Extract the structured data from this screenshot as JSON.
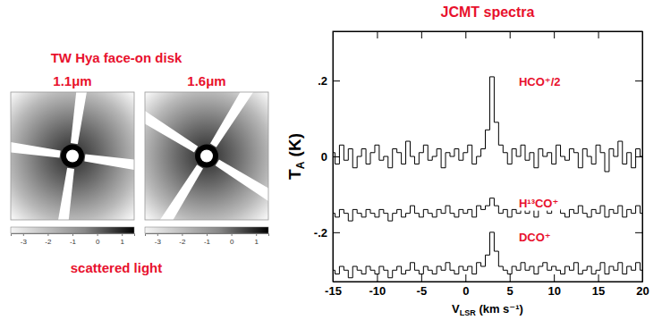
{
  "panel": {
    "title": "TW Hya face-on disk",
    "caption": "scattered light",
    "images": [
      {
        "label": "1.1μm",
        "colorbar": {
          "range": [
            -3.5,
            1.5
          ],
          "ticks": [
            -3,
            -2,
            -1,
            0,
            1
          ]
        }
      },
      {
        "label": "1.6μm",
        "colorbar": {
          "range": [
            -3.5,
            1.5
          ],
          "ticks": [
            -3,
            -2,
            -1,
            0,
            1
          ]
        }
      }
    ]
  },
  "chart_data": {
    "type": "line",
    "title": "JCMT spectra",
    "xlabel": "VLSR (km s⁻¹)",
    "ylabel": "TA (K)",
    "x": [
      -15,
      -14.5,
      -14,
      -13.5,
      -13,
      -12.5,
      -12,
      -11.5,
      -11,
      -10.5,
      -10,
      -9.5,
      -9,
      -8.5,
      -8,
      -7.5,
      -7,
      -6.5,
      -6,
      -5.5,
      -5,
      -4.5,
      -4,
      -3.5,
      -3,
      -2.5,
      -2,
      -1.5,
      -1,
      -0.5,
      0,
      0.5,
      1,
      1.5,
      2,
      2.5,
      3,
      3.5,
      4,
      4.5,
      5,
      5.5,
      6,
      6.5,
      7,
      7.5,
      8,
      8.5,
      9,
      9.5,
      10,
      10.5,
      11,
      11.5,
      12,
      12.5,
      13,
      13.5,
      14,
      14.5,
      15,
      15.5,
      16,
      16.5,
      17,
      17.5,
      18,
      18.5,
      19,
      19.5,
      20
    ],
    "series": [
      {
        "name": "HCO⁺/2",
        "color": "#000000",
        "line_style": "step",
        "values": [
          0.01,
          -0.02,
          0.03,
          -0.01,
          0.02,
          -0.03,
          0.0,
          0.02,
          -0.02,
          0.01,
          0.03,
          -0.01,
          0.0,
          -0.03,
          0.02,
          0.01,
          -0.02,
          0.04,
          0.0,
          -0.02,
          0.01,
          0.03,
          -0.01,
          0.0,
          0.02,
          -0.03,
          0.01,
          0.0,
          0.02,
          -0.01,
          0.01,
          0.03,
          -0.02,
          0.0,
          0.02,
          0.07,
          0.21,
          0.09,
          0.03,
          0.01,
          -0.02,
          0.02,
          0.0,
          0.03,
          -0.01,
          0.01,
          -0.03,
          0.02,
          0.0,
          0.01,
          -0.02,
          0.03,
          0.0,
          -0.01,
          0.02,
          0.01,
          -0.03,
          0.02,
          0.0,
          -0.02,
          0.03,
          0.01,
          -0.04,
          0.02,
          0.0,
          0.04,
          -0.02,
          0.01,
          -0.03,
          0.02,
          0.0
        ]
      },
      {
        "name": "H¹³CO⁺",
        "color": "#000000",
        "line_style": "step",
        "values": [
          -0.15,
          -0.16,
          -0.14,
          -0.15,
          -0.17,
          -0.14,
          -0.15,
          -0.16,
          -0.14,
          -0.15,
          -0.16,
          -0.14,
          -0.15,
          -0.17,
          -0.15,
          -0.14,
          -0.16,
          -0.15,
          -0.13,
          -0.15,
          -0.16,
          -0.14,
          -0.15,
          -0.16,
          -0.14,
          -0.15,
          -0.13,
          -0.15,
          -0.16,
          -0.14,
          -0.15,
          -0.14,
          -0.16,
          -0.13,
          -0.14,
          -0.13,
          -0.11,
          -0.13,
          -0.15,
          -0.14,
          -0.16,
          -0.14,
          -0.15,
          -0.13,
          -0.15,
          -0.14,
          -0.16,
          -0.14,
          -0.13,
          -0.15,
          -0.12,
          -0.14,
          -0.15,
          -0.16,
          -0.14,
          -0.15,
          -0.13,
          -0.15,
          -0.16,
          -0.14,
          -0.15,
          -0.13,
          -0.16,
          -0.14,
          -0.15,
          -0.13,
          -0.16,
          -0.14,
          -0.15,
          -0.13,
          -0.15
        ]
      },
      {
        "name": "DCO⁺",
        "color": "#000000",
        "line_style": "step",
        "values": [
          -0.3,
          -0.31,
          -0.29,
          -0.3,
          -0.32,
          -0.29,
          -0.3,
          -0.31,
          -0.29,
          -0.3,
          -0.31,
          -0.29,
          -0.3,
          -0.32,
          -0.3,
          -0.29,
          -0.31,
          -0.3,
          -0.28,
          -0.3,
          -0.31,
          -0.29,
          -0.3,
          -0.31,
          -0.29,
          -0.3,
          -0.28,
          -0.3,
          -0.31,
          -0.29,
          -0.3,
          -0.29,
          -0.31,
          -0.28,
          -0.29,
          -0.26,
          -0.2,
          -0.25,
          -0.29,
          -0.3,
          -0.31,
          -0.29,
          -0.3,
          -0.28,
          -0.3,
          -0.29,
          -0.31,
          -0.29,
          -0.28,
          -0.3,
          -0.29,
          -0.3,
          -0.31,
          -0.29,
          -0.3,
          -0.28,
          -0.31,
          -0.3,
          -0.29,
          -0.31,
          -0.3,
          -0.28,
          -0.31,
          -0.29,
          -0.3,
          -0.28,
          -0.31,
          -0.29,
          -0.3,
          -0.28,
          -0.3
        ]
      }
    ],
    "xlim": [
      -15,
      20
    ],
    "ylim": [
      -0.33,
      0.33
    ],
    "xticks": [
      -15,
      -10,
      -5,
      0,
      5,
      10,
      15,
      20
    ],
    "yticks": [
      {
        "value": 0.2,
        "label": ".2"
      },
      0,
      {
        "value": -0.2,
        "label": "-.2"
      }
    ]
  }
}
